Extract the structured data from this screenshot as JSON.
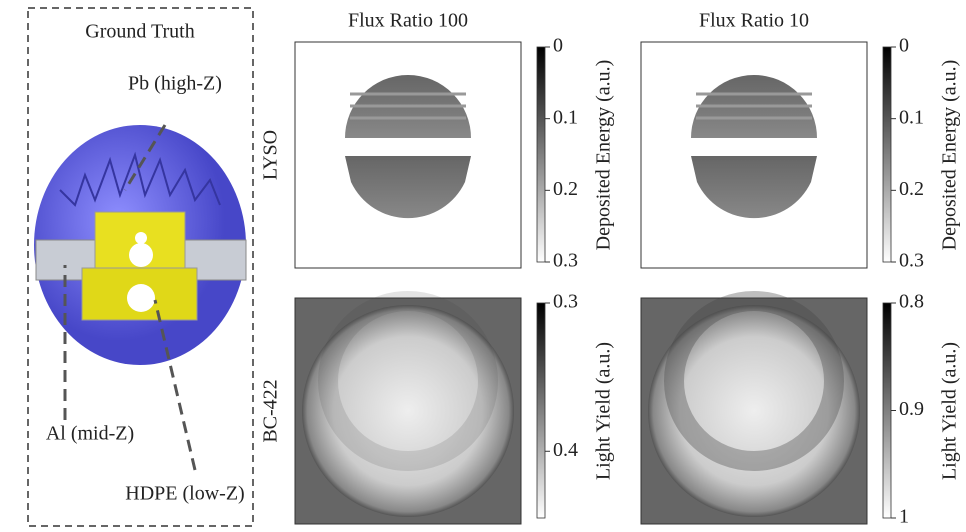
{
  "ground_truth": {
    "title": "Ground Truth",
    "labels": [
      "Pb (high-Z)",
      "Al (mid-Z)",
      "HDPE (low-Z)"
    ]
  },
  "columns": [
    "Flux Ratio 100",
    "Flux Ratio 10"
  ],
  "rows": [
    "LYSO",
    "BC-422"
  ],
  "colorbars": [
    {
      "label": "Deposited Energy (a.u.)",
      "lim": [
        0,
        0.3
      ],
      "ticks": [
        0,
        0.1,
        0.2,
        0.3
      ]
    },
    {
      "label": "Deposited Energy (a.u.)",
      "lim": [
        0,
        0.3
      ],
      "ticks": [
        0,
        0.1,
        0.2,
        0.3
      ]
    },
    {
      "label": "Light Yield (a.u.)",
      "lim": [
        0.3,
        0.445
      ],
      "ticks": [
        0.3,
        0.4
      ]
    },
    {
      "label": "Light Yield (a.u.)",
      "lim": [
        0.8,
        1
      ],
      "ticks": [
        0.8,
        0.9,
        1
      ]
    }
  ]
}
